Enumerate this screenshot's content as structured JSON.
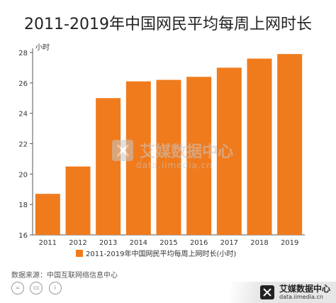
{
  "chart_data": {
    "type": "bar",
    "title": "2011-2019年中国网民平均每周上网时长",
    "unit_label": "小时",
    "categories": [
      "2011",
      "2012",
      "2013",
      "2014",
      "2015",
      "2016",
      "2017",
      "2018",
      "2019"
    ],
    "series": [
      {
        "name": "2011-2019年中国网民平均每周上网时长(小时)",
        "values": [
          18.7,
          20.5,
          25.0,
          26.1,
          26.2,
          26.4,
          27.0,
          27.6,
          27.9
        ]
      }
    ],
    "ylim": [
      16,
      28
    ],
    "yticks": [
      16,
      18,
      20,
      22,
      24,
      26,
      28
    ],
    "grid": false,
    "legend_position": "bottom",
    "bar_color": "#f07b1d"
  },
  "watermark": {
    "name": "艾媒数据中心",
    "url": "data.iimedia.cn"
  },
  "source_text": "数据来源：中国互联网络信息中心",
  "cc_icons": [
    "cc-icon",
    "attribution-icon"
  ],
  "brand": {
    "name": "艾媒数据中心",
    "url": "data.iimedia.cn"
  }
}
